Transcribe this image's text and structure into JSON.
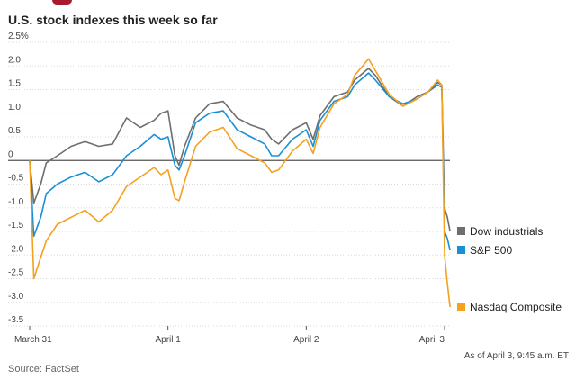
{
  "header": {
    "title": "U.S. stock indexes this week so far",
    "asof": "As of April 3, 9:45 a.m. ET",
    "source": "Source: FactSet"
  },
  "colors": {
    "dow": "#6e6e6e",
    "sp500": "#1a8fd4",
    "nasdaq": "#f4a11d",
    "zero_line": "#555555",
    "grid": "#d8d8d8",
    "brand_mark": "#a8192e"
  },
  "chart_data": {
    "type": "line",
    "title": "U.S. stock indexes this week so far",
    "ylabel": "",
    "ylim": [
      -3.5,
      2.5
    ],
    "yticks": [
      2.5,
      2.0,
      1.5,
      1.0,
      0.5,
      0,
      -0.5,
      -1.0,
      -1.5,
      -2.0,
      -2.5,
      -3.0,
      -3.5
    ],
    "ytick_labels": [
      "2.5%",
      "2.0",
      "1.5",
      "1.0",
      "0.5",
      "0",
      "-0.5",
      "-1.0",
      "-1.5",
      "-2.0",
      "-2.5",
      "-3.0",
      "-3.5"
    ],
    "xlim": [
      0,
      3
    ],
    "xticks": [
      0,
      1,
      2,
      3
    ],
    "xtick_labels": [
      "March 31",
      "April 1",
      "April 2",
      "April 3"
    ],
    "grid": "horizontal",
    "legend_placement": "right",
    "series": [
      {
        "name": "Dow industrials",
        "color_key": "dow",
        "points": [
          [
            0,
            0
          ],
          [
            0.03,
            -0.9
          ],
          [
            0.08,
            -0.5
          ],
          [
            0.12,
            -0.05
          ],
          [
            0.2,
            0.1
          ],
          [
            0.3,
            0.3
          ],
          [
            0.4,
            0.4
          ],
          [
            0.5,
            0.3
          ],
          [
            0.6,
            0.35
          ],
          [
            0.7,
            0.9
          ],
          [
            0.8,
            0.7
          ],
          [
            0.9,
            0.85
          ],
          [
            0.95,
            1.0
          ],
          [
            1.0,
            1.05
          ],
          [
            1.05,
            0.1
          ],
          [
            1.08,
            -0.1
          ],
          [
            1.12,
            0.3
          ],
          [
            1.2,
            0.9
          ],
          [
            1.3,
            1.2
          ],
          [
            1.4,
            1.25
          ],
          [
            1.5,
            0.9
          ],
          [
            1.6,
            0.75
          ],
          [
            1.7,
            0.65
          ],
          [
            1.75,
            0.45
          ],
          [
            1.8,
            0.35
          ],
          [
            1.9,
            0.65
          ],
          [
            2.0,
            0.8
          ],
          [
            2.05,
            0.45
          ],
          [
            2.1,
            0.95
          ],
          [
            2.2,
            1.35
          ],
          [
            2.3,
            1.45
          ],
          [
            2.35,
            1.7
          ],
          [
            2.45,
            1.95
          ],
          [
            2.5,
            1.8
          ],
          [
            2.6,
            1.35
          ],
          [
            2.7,
            1.15
          ],
          [
            2.8,
            1.35
          ],
          [
            2.88,
            1.45
          ],
          [
            2.95,
            1.6
          ],
          [
            2.98,
            1.55
          ],
          [
            3.0,
            -1.0
          ],
          [
            3.02,
            -1.2
          ],
          [
            3.04,
            -1.5
          ]
        ],
        "last_value": -1.5
      },
      {
        "name": "S&P 500",
        "color_key": "sp500",
        "points": [
          [
            0,
            0
          ],
          [
            0.03,
            -1.6
          ],
          [
            0.08,
            -1.2
          ],
          [
            0.12,
            -0.7
          ],
          [
            0.2,
            -0.5
          ],
          [
            0.3,
            -0.35
          ],
          [
            0.4,
            -0.25
          ],
          [
            0.5,
            -0.45
          ],
          [
            0.6,
            -0.3
          ],
          [
            0.7,
            0.1
          ],
          [
            0.8,
            0.3
          ],
          [
            0.9,
            0.55
          ],
          [
            0.95,
            0.45
          ],
          [
            1.0,
            0.5
          ],
          [
            1.05,
            -0.1
          ],
          [
            1.08,
            -0.2
          ],
          [
            1.12,
            0.1
          ],
          [
            1.2,
            0.8
          ],
          [
            1.3,
            1.0
          ],
          [
            1.4,
            1.05
          ],
          [
            1.5,
            0.65
          ],
          [
            1.6,
            0.5
          ],
          [
            1.7,
            0.35
          ],
          [
            1.75,
            0.1
          ],
          [
            1.8,
            0.1
          ],
          [
            1.9,
            0.45
          ],
          [
            2.0,
            0.65
          ],
          [
            2.05,
            0.3
          ],
          [
            2.1,
            0.85
          ],
          [
            2.2,
            1.25
          ],
          [
            2.3,
            1.35
          ],
          [
            2.35,
            1.6
          ],
          [
            2.45,
            1.85
          ],
          [
            2.5,
            1.7
          ],
          [
            2.6,
            1.35
          ],
          [
            2.7,
            1.2
          ],
          [
            2.8,
            1.3
          ],
          [
            2.88,
            1.45
          ],
          [
            2.95,
            1.65
          ],
          [
            2.98,
            1.6
          ],
          [
            3.0,
            -1.5
          ],
          [
            3.02,
            -1.65
          ],
          [
            3.04,
            -1.9
          ]
        ],
        "last_value": -1.9
      },
      {
        "name": "Nasdaq Composite",
        "color_key": "nasdaq",
        "points": [
          [
            0,
            0
          ],
          [
            0.03,
            -2.5
          ],
          [
            0.08,
            -2.05
          ],
          [
            0.12,
            -1.7
          ],
          [
            0.2,
            -1.35
          ],
          [
            0.3,
            -1.2
          ],
          [
            0.4,
            -1.05
          ],
          [
            0.5,
            -1.3
          ],
          [
            0.6,
            -1.05
          ],
          [
            0.7,
            -0.55
          ],
          [
            0.8,
            -0.35
          ],
          [
            0.9,
            -0.15
          ],
          [
            0.95,
            -0.3
          ],
          [
            1.0,
            -0.2
          ],
          [
            1.05,
            -0.8
          ],
          [
            1.08,
            -0.85
          ],
          [
            1.12,
            -0.45
          ],
          [
            1.2,
            0.3
          ],
          [
            1.3,
            0.6
          ],
          [
            1.4,
            0.7
          ],
          [
            1.5,
            0.25
          ],
          [
            1.6,
            0.1
          ],
          [
            1.7,
            -0.05
          ],
          [
            1.75,
            -0.25
          ],
          [
            1.8,
            -0.2
          ],
          [
            1.9,
            0.2
          ],
          [
            2.0,
            0.45
          ],
          [
            2.05,
            0.15
          ],
          [
            2.1,
            0.7
          ],
          [
            2.2,
            1.2
          ],
          [
            2.3,
            1.4
          ],
          [
            2.35,
            1.8
          ],
          [
            2.45,
            2.15
          ],
          [
            2.5,
            1.9
          ],
          [
            2.6,
            1.4
          ],
          [
            2.7,
            1.15
          ],
          [
            2.8,
            1.3
          ],
          [
            2.88,
            1.45
          ],
          [
            2.95,
            1.7
          ],
          [
            2.98,
            1.6
          ],
          [
            3.0,
            -2.0
          ],
          [
            3.02,
            -2.6
          ],
          [
            3.04,
            -3.1
          ]
        ],
        "last_value": -3.1
      }
    ]
  }
}
